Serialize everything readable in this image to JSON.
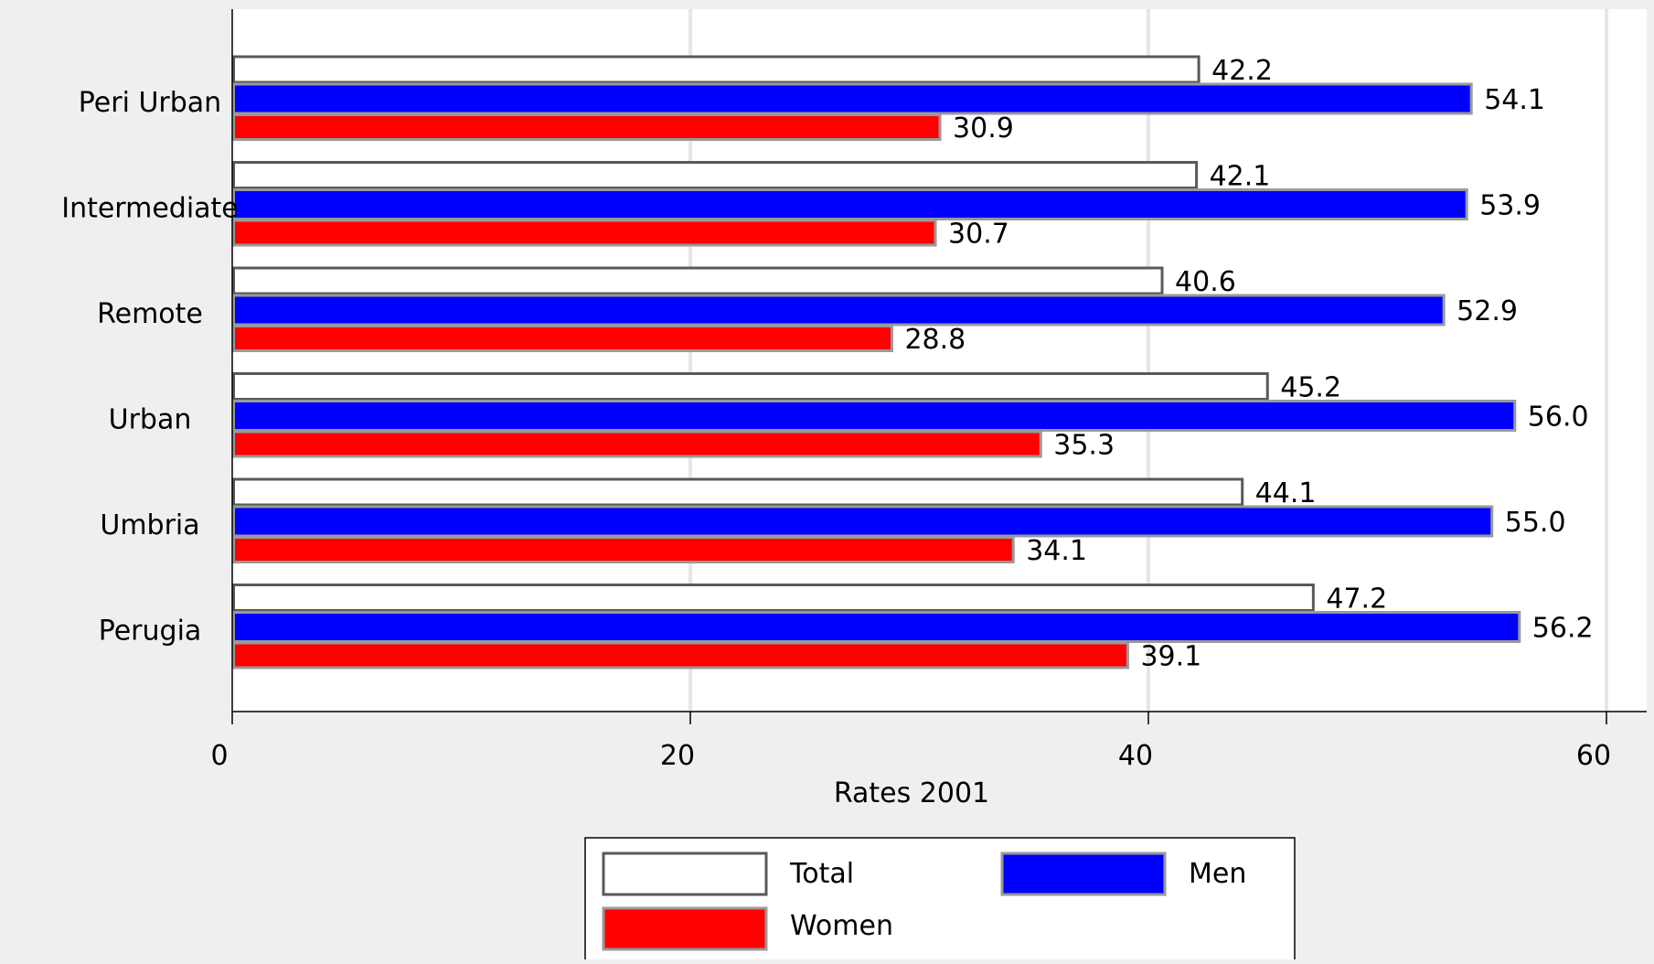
{
  "chart_data": {
    "type": "bar",
    "orientation": "horizontal",
    "categories": [
      "Peri Urban",
      "Intermediate",
      "Remote",
      "Urban",
      "Umbria",
      "Perugia"
    ],
    "series": [
      {
        "name": "Total",
        "color": "#ffffff",
        "values": [
          42.2,
          42.1,
          40.6,
          45.2,
          44.1,
          47.2
        ]
      },
      {
        "name": "Men",
        "color": "#0000ff",
        "values": [
          54.1,
          53.9,
          52.9,
          56.0,
          55.0,
          56.2
        ]
      },
      {
        "name": "Women",
        "color": "#ff0000",
        "values": [
          30.9,
          30.7,
          28.8,
          35.3,
          34.1,
          39.1
        ]
      }
    ],
    "xlabel": "Rates 2001",
    "xlim": [
      0,
      60
    ],
    "xticks": [
      0,
      20,
      40,
      60
    ],
    "grid": true,
    "legend": "bottom",
    "data_labels": true
  }
}
